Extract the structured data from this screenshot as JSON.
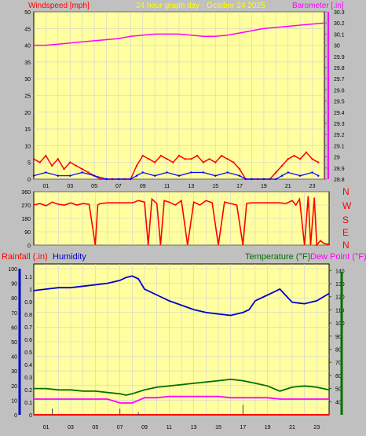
{
  "header": {
    "title": "24 hour graph day - October 24 2025",
    "windspeed_label": "Windspeed [mph]",
    "barometer_label": "Barometer [.in]"
  },
  "middle_header": {
    "rainfall_label": "Rainfall (.in)",
    "humidity_label": "Humidity",
    "temperature_label": "Temperature (°F)",
    "dewpoint_label": "Dew Point (°F)"
  },
  "colors": {
    "background": "#c0c0c0",
    "plot_bg": "#ffffa0",
    "grid": "#d0d0d0",
    "windspeed": "#ff0000",
    "windspeed_alt": "#0000ff",
    "windspeed_green": "#008000",
    "barometer": "#ff00ff",
    "direction": "#ff0000",
    "humidity": "#0000cc",
    "temperature": "#007000",
    "dewpoint": "#ff00ff",
    "rain_axis": "#ff0000",
    "title_color": "#ffff00",
    "compass_color": "#ff0000"
  },
  "chart_data": [
    {
      "type": "line",
      "name": "windspeed_barometer",
      "x_ticks": [
        "01",
        "03",
        "05",
        "07",
        "09",
        "11",
        "13",
        "15",
        "17",
        "19",
        "21",
        "23"
      ],
      "left_axis": {
        "label": "Windspeed [mph]",
        "ylim": [
          0,
          50
        ],
        "ticks": [
          "0",
          "5",
          "10",
          "15",
          "20",
          "25",
          "30",
          "35",
          "40",
          "45",
          "50"
        ]
      },
      "right_axis": {
        "label": "Barometer [.in]",
        "ylim": [
          28.8,
          30.3
        ],
        "ticks": [
          "28.8",
          "28.9",
          "29",
          "29.1",
          "29.2",
          "29.3",
          "29.4",
          "29.5",
          "29.6",
          "29.7",
          "29.8",
          "29.9",
          "30",
          "30.1",
          "30.2",
          "30.3"
        ]
      },
      "series": [
        {
          "name": "Barometer",
          "axis": "right",
          "x": [
            0,
            1,
            2,
            3,
            4,
            5,
            6,
            7,
            8,
            9,
            10,
            11,
            12,
            13,
            14,
            15,
            16,
            17,
            18,
            19,
            20,
            21,
            22,
            23,
            24
          ],
          "y": [
            30.0,
            30.0,
            30.01,
            30.02,
            30.03,
            30.04,
            30.05,
            30.06,
            30.08,
            30.09,
            30.1,
            30.1,
            30.1,
            30.09,
            30.08,
            30.08,
            30.09,
            30.11,
            30.13,
            30.15,
            30.16,
            30.17,
            30.18,
            30.19,
            30.2
          ]
        },
        {
          "name": "Wind gust",
          "axis": "left",
          "x": [
            0,
            0.5,
            1,
            1.5,
            2,
            2.5,
            3,
            3.5,
            4,
            4.5,
            5,
            5.5,
            6,
            6.5,
            7,
            7.5,
            8,
            8.5,
            9,
            9.5,
            10,
            10.5,
            11,
            11.5,
            12,
            12.5,
            13,
            13.5,
            14,
            14.5,
            15,
            15.5,
            16,
            16.5,
            17,
            17.5,
            18,
            18.5,
            19,
            19.5,
            20,
            20.5,
            21,
            21.5,
            22,
            22.5,
            23,
            23.5
          ],
          "y": [
            6,
            5,
            7,
            4,
            6,
            3,
            5,
            4,
            3,
            2,
            1,
            0,
            0,
            0,
            0,
            0,
            0,
            4,
            7,
            6,
            5,
            7,
            6,
            5,
            7,
            6,
            6,
            7,
            5,
            6,
            5,
            7,
            6,
            5,
            3,
            0,
            0,
            0,
            0,
            0,
            2,
            4,
            6,
            7,
            6,
            8,
            6,
            5
          ]
        },
        {
          "name": "Wind average",
          "axis": "left",
          "x": [
            0,
            1,
            2,
            3,
            4,
            5,
            6,
            7,
            8,
            8.5,
            9,
            10,
            11,
            12,
            13,
            14,
            15,
            16,
            17,
            17.5,
            18,
            19,
            20,
            20.5,
            21,
            22,
            23,
            23.5
          ],
          "y": [
            1,
            2,
            1,
            1,
            2,
            1,
            0,
            0,
            0,
            1,
            2,
            1,
            2,
            1,
            2,
            2,
            1,
            2,
            1,
            0,
            0,
            0,
            0,
            1,
            2,
            1,
            2,
            1
          ]
        }
      ]
    },
    {
      "type": "line",
      "name": "wind_direction",
      "left_axis": {
        "ylim": [
          0,
          360
        ],
        "ticks": [
          "0",
          "90",
          "180",
          "270",
          "360"
        ]
      },
      "right_labels": [
        "N",
        "W",
        "S",
        "E",
        "N"
      ],
      "series": [
        {
          "name": "Direction",
          "x": [
            0,
            0.5,
            1,
            1.5,
            2,
            2.5,
            3,
            3.5,
            4,
            4.5,
            5,
            5.2,
            5.4,
            6,
            7,
            8,
            8.5,
            9,
            9.3,
            9.6,
            10,
            10.3,
            10.6,
            11,
            11.5,
            12,
            12.5,
            13,
            13.5,
            14,
            14.5,
            15,
            15.5,
            16,
            16.5,
            17,
            17.3,
            17.6,
            18,
            19,
            20,
            20.5,
            21,
            21.3,
            21.6,
            22,
            22.3,
            22.5,
            22.8,
            23,
            23.3,
            23.6,
            24
          ],
          "y": [
            270,
            280,
            265,
            290,
            275,
            270,
            285,
            270,
            280,
            275,
            0,
            270,
            280,
            285,
            285,
            285,
            300,
            290,
            0,
            310,
            280,
            0,
            300,
            290,
            270,
            300,
            0,
            290,
            270,
            300,
            285,
            0,
            290,
            280,
            270,
            0,
            280,
            285,
            285,
            285,
            285,
            280,
            300,
            270,
            310,
            0,
            330,
            0,
            320,
            0,
            30,
            10,
            5
          ]
        }
      ]
    },
    {
      "type": "line",
      "name": "rain_humidity_temperature",
      "x_ticks": [
        "01",
        "03",
        "05",
        "07",
        "09",
        "11",
        "13",
        "15",
        "17",
        "19",
        "21",
        "23"
      ],
      "rain_axis": {
        "label": "Rainfall (.in)",
        "ylim": [
          0,
          1.2
        ],
        "ticks": [
          "0",
          "0.1",
          "0.2",
          "0.3",
          "0.4",
          "0.5",
          "0.6",
          "0.7",
          "0.8",
          "0.9",
          "1",
          "1.1"
        ]
      },
      "humidity_axis": {
        "label": "Humidity",
        "ylim": [
          0,
          100
        ],
        "ticks": [
          "0",
          "10",
          "20",
          "30",
          "40",
          "50",
          "60",
          "70",
          "80",
          "90",
          "100"
        ]
      },
      "temp_axis": {
        "label": "Temperature (°F)",
        "ylim": [
          30,
          145
        ],
        "ticks": [
          "40",
          "50",
          "60",
          "70",
          "80",
          "90",
          "100",
          "110",
          "120",
          "130",
          "140"
        ]
      },
      "series": [
        {
          "name": "Humidity",
          "axis": "humidity",
          "x": [
            0,
            1,
            2,
            3,
            4,
            5,
            6,
            7,
            7.5,
            8,
            8.5,
            9,
            10,
            11,
            12,
            13,
            14,
            15,
            16,
            17,
            17.5,
            18,
            19,
            19.5,
            20,
            21,
            22,
            23,
            24
          ],
          "y": [
            85,
            86,
            87,
            87,
            88,
            89,
            90,
            92,
            94,
            95,
            93,
            86,
            82,
            78,
            75,
            72,
            70,
            69,
            68,
            70,
            72,
            78,
            82,
            84,
            86,
            77,
            76,
            78,
            83
          ]
        },
        {
          "name": "Temperature",
          "axis": "temp",
          "x": [
            0,
            1,
            2,
            3,
            4,
            5,
            6,
            7,
            7.5,
            8,
            9,
            10,
            11,
            12,
            13,
            14,
            15,
            16,
            17,
            18,
            19,
            20,
            21,
            22,
            23,
            24
          ],
          "y": [
            50,
            50,
            49,
            49,
            48,
            48,
            47,
            46,
            45,
            46,
            49,
            51,
            52,
            53,
            54,
            55,
            56,
            57,
            56,
            54,
            52,
            48,
            51,
            52,
            51,
            49
          ]
        },
        {
          "name": "Dew Point",
          "axis": "temp",
          "x": [
            0,
            1,
            2,
            3,
            4,
            5,
            6,
            7,
            8,
            9,
            10,
            11,
            12,
            13,
            14,
            15,
            16,
            17,
            18,
            19,
            20,
            21,
            22,
            23,
            24
          ],
          "y": [
            42,
            42,
            42,
            42,
            42,
            42,
            42,
            39,
            39,
            43,
            43,
            44,
            44,
            44,
            44,
            44,
            43,
            43,
            43,
            43,
            42,
            42,
            42,
            42,
            42
          ]
        },
        {
          "name": "Rain tick marks",
          "axis": "rain",
          "x": [
            1.5,
            7,
            8.5,
            17
          ],
          "y": [
            0.05,
            0.05,
            0.02,
            0.08
          ]
        }
      ]
    }
  ]
}
